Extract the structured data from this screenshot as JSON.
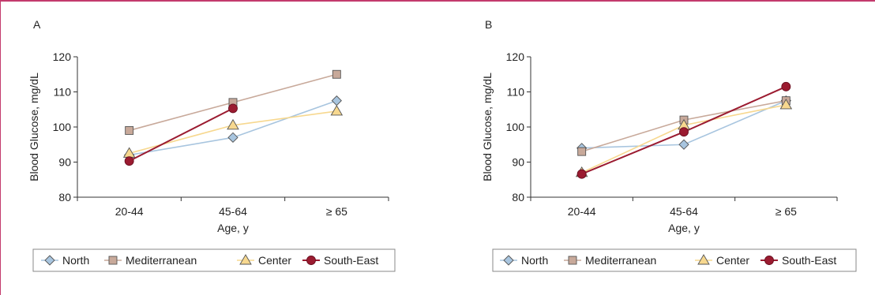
{
  "chart_data": [
    {
      "type": "line",
      "panel_label": "A",
      "categories": [
        "20-44",
        "45-64",
        "≥ 65"
      ],
      "xlabel": "Age, y",
      "ylabel": "Blood Glucose, mg/dL",
      "ylim": [
        80,
        120
      ],
      "yticks": [
        80,
        90,
        100,
        110,
        120
      ],
      "grid": false,
      "legend_position": "bottom",
      "series": [
        {
          "name": "North",
          "color": "#a8c5df",
          "marker": "diamond",
          "values": [
            92,
            97,
            107.5
          ]
        },
        {
          "name": "Mediterranean",
          "color": "#c8a99a",
          "marker": "square",
          "values": [
            99,
            107,
            115
          ]
        },
        {
          "name": "Center",
          "color": "#f7d88f",
          "marker": "triangle",
          "values": [
            92.5,
            100.5,
            104.5
          ]
        },
        {
          "name": "South-East",
          "color": "#9b1b30",
          "marker": "circle",
          "values": [
            90.3,
            105.3,
            null
          ]
        }
      ]
    },
    {
      "type": "line",
      "panel_label": "B",
      "categories": [
        "20-44",
        "45-64",
        "≥ 65"
      ],
      "xlabel": "Age, y",
      "ylabel": "Blood Glucose, mg/dL",
      "ylim": [
        80,
        120
      ],
      "yticks": [
        80,
        90,
        100,
        110,
        120
      ],
      "grid": false,
      "legend_position": "bottom",
      "series": [
        {
          "name": "North",
          "color": "#a8c5df",
          "marker": "diamond",
          "values": [
            94,
            95,
            107.5
          ]
        },
        {
          "name": "Mediterranean",
          "color": "#c8a99a",
          "marker": "square",
          "values": [
            93,
            102,
            107.5
          ]
        },
        {
          "name": "Center",
          "color": "#f7d88f",
          "marker": "triangle",
          "values": [
            87,
            100.5,
            106.3
          ]
        },
        {
          "name": "South-East",
          "color": "#9b1b30",
          "marker": "circle",
          "values": [
            86.6,
            98.6,
            111.5
          ]
        }
      ]
    }
  ]
}
